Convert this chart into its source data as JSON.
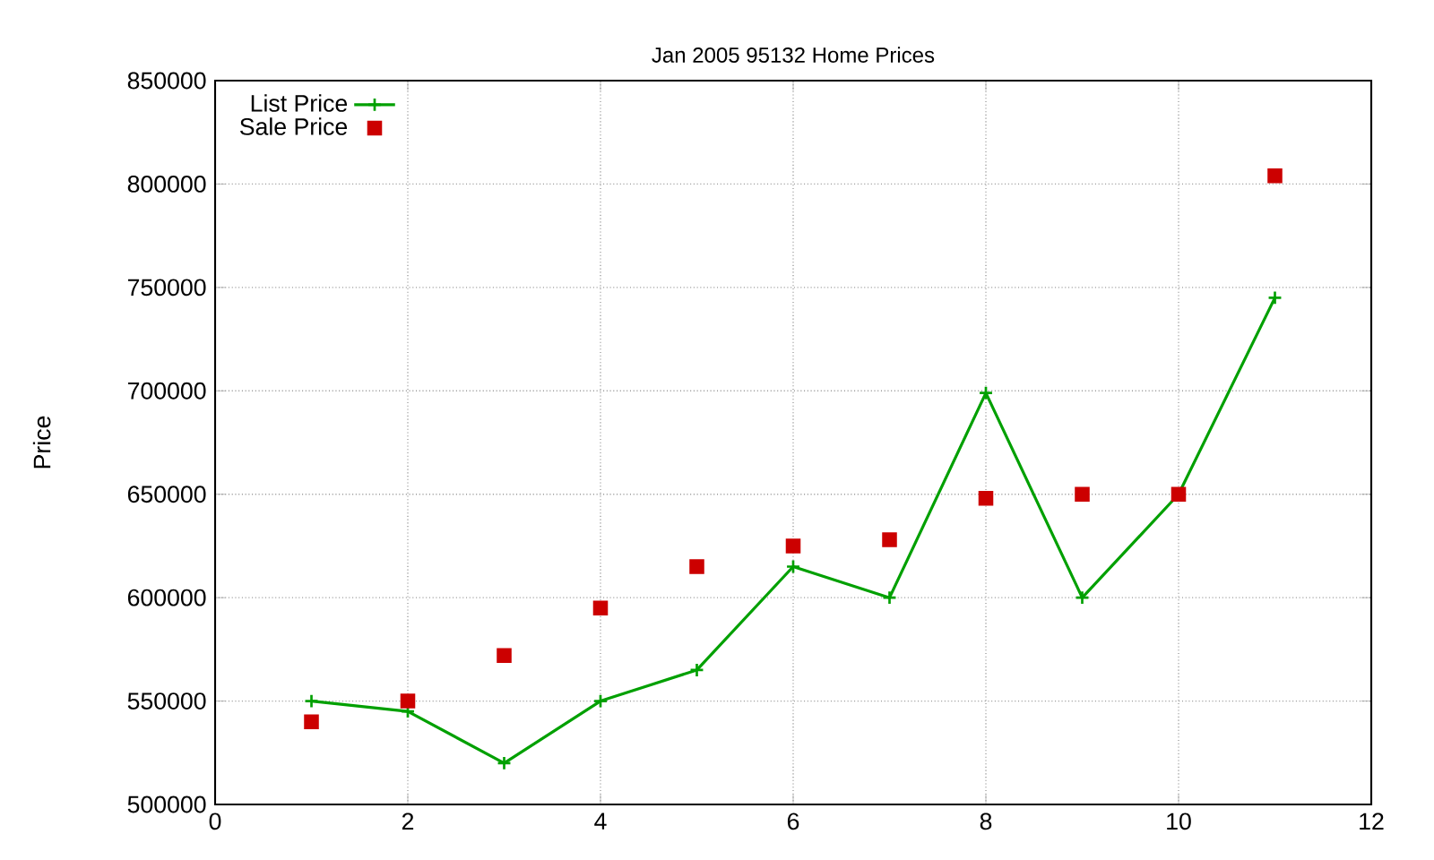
{
  "chart_data": {
    "type": "line",
    "title": "Jan 2005 95132 Home Prices",
    "ylabel": "Price",
    "x": [
      1,
      2,
      3,
      4,
      5,
      6,
      7,
      8,
      9,
      10,
      11
    ],
    "series": [
      {
        "name": "List Price",
        "color": "#00a000",
        "marker": "cross",
        "line_style": "solid",
        "values": [
          550000,
          545000,
          520000,
          550000,
          565000,
          615000,
          600000,
          699000,
          600000,
          650000,
          745000
        ]
      },
      {
        "name": "Sale Price",
        "type": "scatter",
        "color": "#cc0000",
        "marker": "square",
        "values": [
          540000,
          550000,
          572000,
          595000,
          615000,
          625000,
          628000,
          648000,
          650000,
          650000,
          804000
        ]
      }
    ],
    "xlim": [
      0,
      12
    ],
    "xticks": [
      0,
      2,
      4,
      6,
      8,
      10,
      12
    ],
    "ylim": [
      500000,
      850000
    ],
    "yticks": [
      500000,
      550000,
      600000,
      650000,
      700000,
      750000,
      800000,
      850000
    ],
    "grid": true,
    "legend": "top left"
  }
}
